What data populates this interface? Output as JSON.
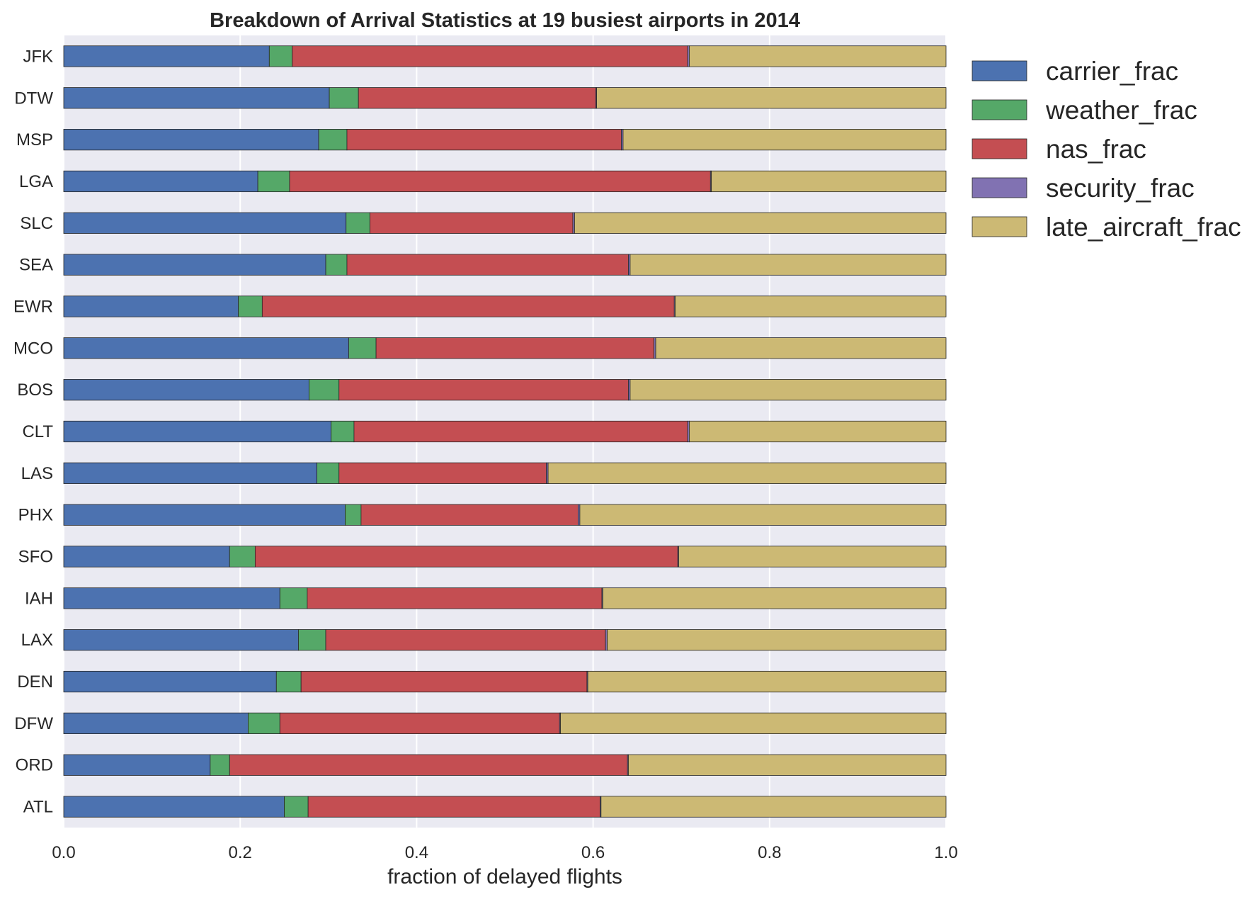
{
  "chart_data": {
    "type": "bar",
    "orientation": "horizontal",
    "stacked": true,
    "title": "Breakdown of Arrival Statistics at 19 busiest airports in 2014",
    "xlabel": "fraction of delayed flights",
    "ylabel": "",
    "xlim": [
      0,
      1
    ],
    "grid": true,
    "legend_position": "outside-right-top",
    "x_ticks": [
      "0.0",
      "0.2",
      "0.4",
      "0.6",
      "0.8",
      "1.0"
    ],
    "categories": [
      "ATL",
      "ORD",
      "DFW",
      "DEN",
      "LAX",
      "IAH",
      "SFO",
      "PHX",
      "LAS",
      "CLT",
      "BOS",
      "MCO",
      "EWR",
      "SEA",
      "SLC",
      "LGA",
      "MSP",
      "DTW",
      "JFK"
    ],
    "series": [
      {
        "name": "carrier_frac",
        "color": "#4c72b0",
        "values": [
          0.25,
          0.166,
          0.209,
          0.241,
          0.266,
          0.245,
          0.188,
          0.319,
          0.287,
          0.303,
          0.278,
          0.323,
          0.198,
          0.297,
          0.32,
          0.22,
          0.289,
          0.301,
          0.233
        ]
      },
      {
        "name": "weather_frac",
        "color": "#55a868",
        "values": [
          0.027,
          0.022,
          0.036,
          0.028,
          0.031,
          0.031,
          0.029,
          0.018,
          0.025,
          0.026,
          0.034,
          0.031,
          0.027,
          0.024,
          0.027,
          0.036,
          0.032,
          0.033,
          0.026
        ]
      },
      {
        "name": "nas_frac",
        "color": "#c44e52",
        "values": [
          0.331,
          0.451,
          0.317,
          0.324,
          0.317,
          0.334,
          0.479,
          0.246,
          0.235,
          0.378,
          0.328,
          0.315,
          0.467,
          0.319,
          0.23,
          0.477,
          0.311,
          0.269,
          0.448
        ]
      },
      {
        "name": "security_frac",
        "color": "#8172b2",
        "values": [
          0.001,
          0.001,
          0.001,
          0.001,
          0.002,
          0.001,
          0.001,
          0.002,
          0.002,
          0.002,
          0.002,
          0.002,
          0.001,
          0.002,
          0.002,
          0.001,
          0.002,
          0.001,
          0.002
        ]
      },
      {
        "name": "late_aircraft_frac",
        "color": "#ccb974",
        "values": [
          0.391,
          0.36,
          0.437,
          0.406,
          0.384,
          0.389,
          0.303,
          0.415,
          0.451,
          0.291,
          0.358,
          0.329,
          0.307,
          0.358,
          0.421,
          0.266,
          0.366,
          0.396,
          0.291
        ]
      }
    ]
  }
}
